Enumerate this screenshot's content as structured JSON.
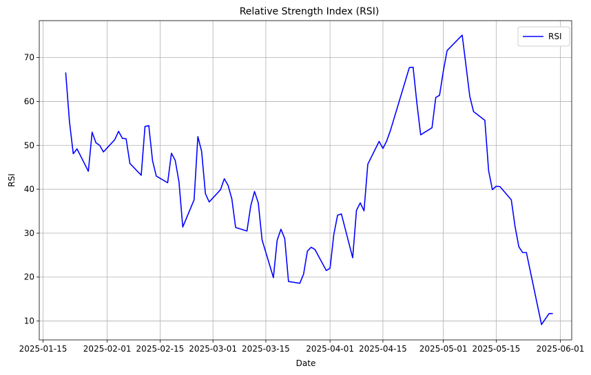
{
  "chart_data": {
    "type": "line",
    "title": "Relative Strength Index (RSI)",
    "xlabel": "Date",
    "ylabel": "RSI",
    "x_axis_type": "date",
    "xlim": [
      "2025-01-14",
      "2025-06-04"
    ],
    "ylim": [
      5.7,
      78.4
    ],
    "grid": true,
    "legend_position": "top-right",
    "x_ticks": [
      "2025-01-15",
      "2025-02-01",
      "2025-02-15",
      "2025-03-01",
      "2025-03-15",
      "2025-04-01",
      "2025-04-15",
      "2025-05-01",
      "2025-05-15",
      "2025-06-01"
    ],
    "x_tick_labels": [
      "2025-01-15",
      "2025-02-01",
      "2025-02-15",
      "2025-03-01",
      "2025-03-15",
      "2025-04-01",
      "2025-04-15",
      "2025-05-01",
      "2025-05-15",
      "2025-06-01"
    ],
    "y_ticks": [
      10,
      20,
      30,
      40,
      50,
      60,
      70
    ],
    "y_tick_labels": [
      "10",
      "20",
      "30",
      "40",
      "50",
      "60",
      "70"
    ],
    "series": [
      {
        "name": "RSI",
        "color": "#0000ff",
        "points": [
          [
            "2025-01-21",
            66.6
          ],
          [
            "2025-01-22",
            55.4
          ],
          [
            "2025-01-23",
            48.1
          ],
          [
            "2025-01-24",
            49.2
          ],
          [
            "2025-01-27",
            44.1
          ],
          [
            "2025-01-28",
            53.0
          ],
          [
            "2025-01-29",
            50.6
          ],
          [
            "2025-01-30",
            50.0
          ],
          [
            "2025-01-31",
            48.5
          ],
          [
            "2025-02-03",
            51.3
          ],
          [
            "2025-02-04",
            53.2
          ],
          [
            "2025-02-05",
            51.6
          ],
          [
            "2025-02-06",
            51.5
          ],
          [
            "2025-02-07",
            45.9
          ],
          [
            "2025-02-10",
            43.2
          ],
          [
            "2025-02-11",
            54.3
          ],
          [
            "2025-02-12",
            54.5
          ],
          [
            "2025-02-13",
            46.5
          ],
          [
            "2025-02-14",
            43.0
          ],
          [
            "2025-02-17",
            41.5
          ],
          [
            "2025-02-18",
            48.2
          ],
          [
            "2025-02-19",
            46.6
          ],
          [
            "2025-02-20",
            41.7
          ],
          [
            "2025-02-21",
            31.4
          ],
          [
            "2025-02-24",
            37.6
          ],
          [
            "2025-02-25",
            52.0
          ],
          [
            "2025-02-26",
            48.6
          ],
          [
            "2025-02-27",
            39.0
          ],
          [
            "2025-02-28",
            37.1
          ],
          [
            "2025-03-03",
            39.9
          ],
          [
            "2025-03-04",
            42.4
          ],
          [
            "2025-03-05",
            40.9
          ],
          [
            "2025-03-06",
            37.8
          ],
          [
            "2025-03-07",
            31.3
          ],
          [
            "2025-03-10",
            30.5
          ],
          [
            "2025-03-11",
            36.2
          ],
          [
            "2025-03-12",
            39.5
          ],
          [
            "2025-03-13",
            36.9
          ],
          [
            "2025-03-14",
            28.5
          ],
          [
            "2025-03-17",
            19.9
          ],
          [
            "2025-03-18",
            28.4
          ],
          [
            "2025-03-19",
            30.9
          ],
          [
            "2025-03-20",
            28.8
          ],
          [
            "2025-03-21",
            19.0
          ],
          [
            "2025-03-24",
            18.6
          ],
          [
            "2025-03-25",
            20.7
          ],
          [
            "2025-03-26",
            25.9
          ],
          [
            "2025-03-27",
            26.8
          ],
          [
            "2025-03-28",
            26.3
          ],
          [
            "2025-03-31",
            21.5
          ],
          [
            "2025-04-01",
            22.0
          ],
          [
            "2025-04-02",
            29.7
          ],
          [
            "2025-04-03",
            34.1
          ],
          [
            "2025-04-04",
            34.4
          ],
          [
            "2025-04-07",
            24.4
          ],
          [
            "2025-04-08",
            35.2
          ],
          [
            "2025-04-09",
            36.9
          ],
          [
            "2025-04-10",
            35.1
          ],
          [
            "2025-04-11",
            45.7
          ],
          [
            "2025-04-14",
            50.9
          ],
          [
            "2025-04-15",
            49.3
          ],
          [
            "2025-04-16",
            51.0
          ],
          [
            "2025-04-17",
            53.4
          ],
          [
            "2025-04-22",
            67.7
          ],
          [
            "2025-04-23",
            67.8
          ],
          [
            "2025-04-24",
            59.6
          ],
          [
            "2025-04-25",
            52.4
          ],
          [
            "2025-04-28",
            54.0
          ],
          [
            "2025-04-29",
            60.9
          ],
          [
            "2025-04-30",
            61.4
          ],
          [
            "2025-05-01",
            66.9
          ],
          [
            "2025-05-02",
            71.6
          ],
          [
            "2025-05-06",
            75.1
          ],
          [
            "2025-05-07",
            68.2
          ],
          [
            "2025-05-08",
            61.2
          ],
          [
            "2025-05-09",
            57.7
          ],
          [
            "2025-05-12",
            55.7
          ],
          [
            "2025-05-13",
            44.2
          ],
          [
            "2025-05-14",
            39.9
          ],
          [
            "2025-05-15",
            40.7
          ],
          [
            "2025-05-16",
            40.6
          ],
          [
            "2025-05-19",
            37.6
          ],
          [
            "2025-05-20",
            31.5
          ],
          [
            "2025-05-21",
            26.9
          ],
          [
            "2025-05-22",
            25.6
          ],
          [
            "2025-05-23",
            25.6
          ],
          [
            "2025-05-27",
            9.2
          ],
          [
            "2025-05-29",
            11.7
          ],
          [
            "2025-05-30",
            11.7
          ]
        ]
      }
    ]
  }
}
